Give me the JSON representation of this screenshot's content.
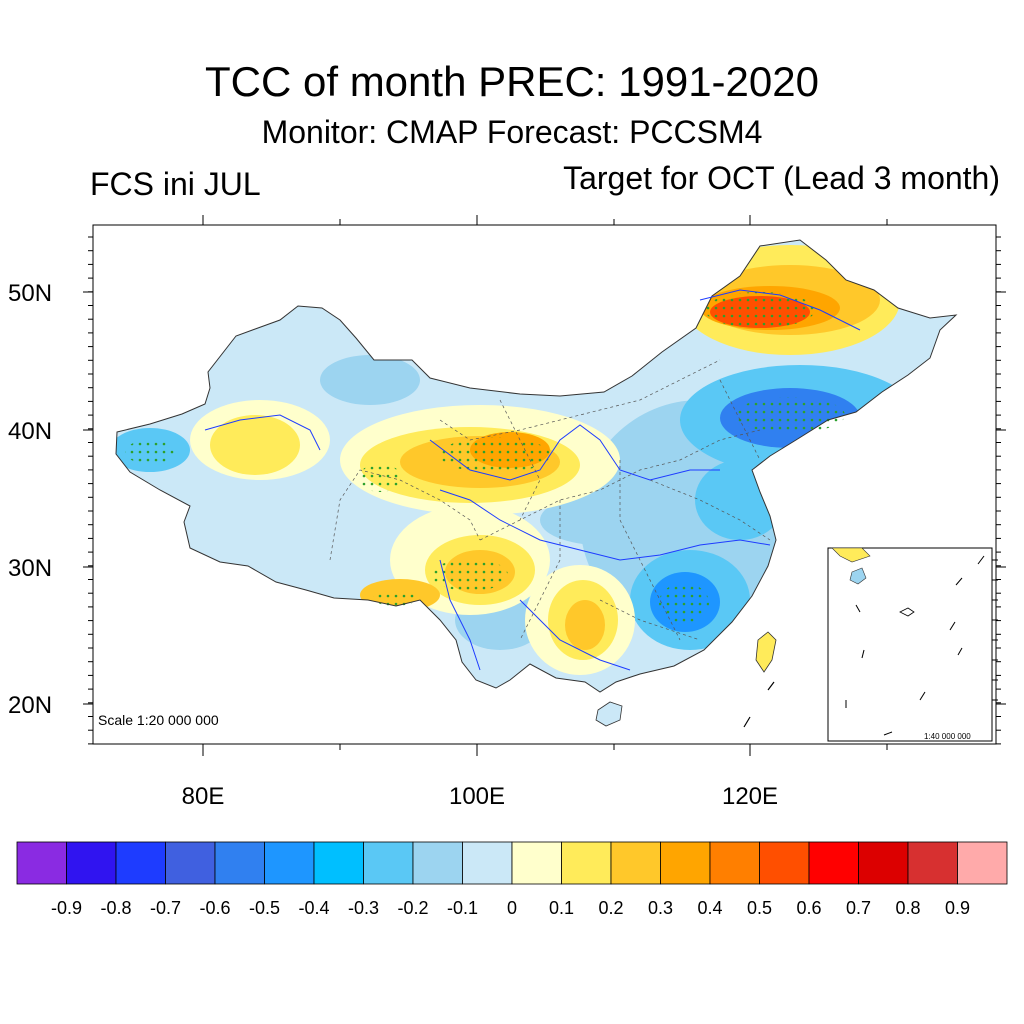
{
  "header": {
    "title": "TCC of month PREC: 1991-2020",
    "subtitle": "Monitor: CMAP   Forecast: PCCSM4",
    "left_label": "FCS ini JUL",
    "right_label": "Target for OCT (Lead 3 month)"
  },
  "map": {
    "scale_text": "Scale 1:20 000 000",
    "inset_scale_text": "1:40 000 000",
    "lat_labels": [
      "50N",
      "40N",
      "30N",
      "20N"
    ],
    "lon_labels": [
      "80E",
      "100E",
      "120E"
    ]
  },
  "colorbar": {
    "colors": [
      "#8a2be2",
      "#3014f0",
      "#1e3cff",
      "#4060e0",
      "#3080f0",
      "#1e96ff",
      "#00bfff",
      "#5ac8f5",
      "#9cd4f0",
      "#cbe8f7",
      "#ffffcc",
      "#ffeb5a",
      "#ffc82a",
      "#ffa500",
      "#ff7f00",
      "#ff4f00",
      "#ff0000",
      "#dc0000",
      "#d73030",
      "#ffaaaa"
    ],
    "labels": [
      "-0.9",
      "-0.8",
      "-0.7",
      "-0.6",
      "-0.5",
      "-0.4",
      "-0.3",
      "-0.2",
      "-0.1",
      "0",
      "0.1",
      "0.2",
      "0.3",
      "0.4",
      "0.5",
      "0.6",
      "0.7",
      "0.8",
      "0.9"
    ]
  }
}
